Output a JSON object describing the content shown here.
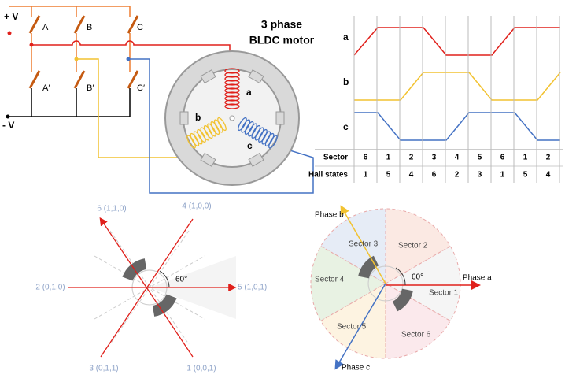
{
  "circuit": {
    "supply_positive": "+ V",
    "supply_negative": "- V",
    "switches": [
      "A",
      "B",
      "C",
      "A′",
      "B′",
      "C′"
    ],
    "motor_title": [
      "3 phase",
      "BLDC motor"
    ],
    "coils": [
      "a",
      "b",
      "c"
    ]
  },
  "hall_timing": {
    "signals": [
      "a",
      "b",
      "c"
    ],
    "row_labels": [
      "Sector",
      "Hall states"
    ],
    "sectors": [
      6,
      1,
      2,
      3,
      4,
      5,
      6,
      1,
      2
    ],
    "hall_states": [
      1,
      5,
      4,
      6,
      2,
      3,
      1,
      5,
      4
    ]
  },
  "hall_vectors": {
    "vectors": [
      "6 (1,1,0)",
      "4 (1,0,0)",
      "2 (0,1,0)",
      "5 (1,0,1)",
      "3 (0,1,1)",
      "1 (0,0,1)"
    ],
    "angle": "60°"
  },
  "sector_map": {
    "phases": [
      "Phase a",
      "Phase b",
      "Phase c"
    ],
    "sectors": [
      "Sector 1",
      "Sector 2",
      "Sector 3",
      "Sector 4",
      "Sector 5",
      "Sector 6"
    ],
    "angle": "60°"
  }
}
